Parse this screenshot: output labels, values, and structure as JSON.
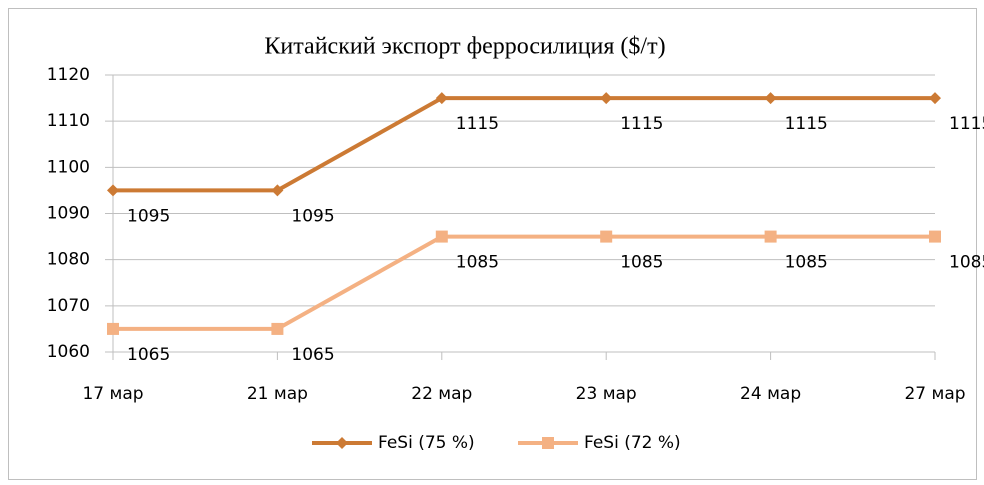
{
  "chart_data": {
    "type": "line",
    "title": "Китайский экспорт ферросилиция ($/т)",
    "categories": [
      "17 мар",
      "21 мар",
      "22 мар",
      "23 мар",
      "24 мар",
      "27 мар"
    ],
    "series": [
      {
        "name": "FeSi (75 %)",
        "color": "#cc7a34",
        "marker": "diamond",
        "values": [
          1095,
          1095,
          1115,
          1115,
          1115,
          1115
        ]
      },
      {
        "name": "FeSi (72 %)",
        "color": "#f4b183",
        "marker": "square",
        "values": [
          1065,
          1065,
          1085,
          1085,
          1085,
          1085
        ]
      }
    ],
    "ylim": [
      1060,
      1120
    ],
    "yticks": [
      1060,
      1070,
      1080,
      1090,
      1100,
      1110,
      1120
    ],
    "grid": true,
    "data_labels": true,
    "legend": "bottom"
  }
}
